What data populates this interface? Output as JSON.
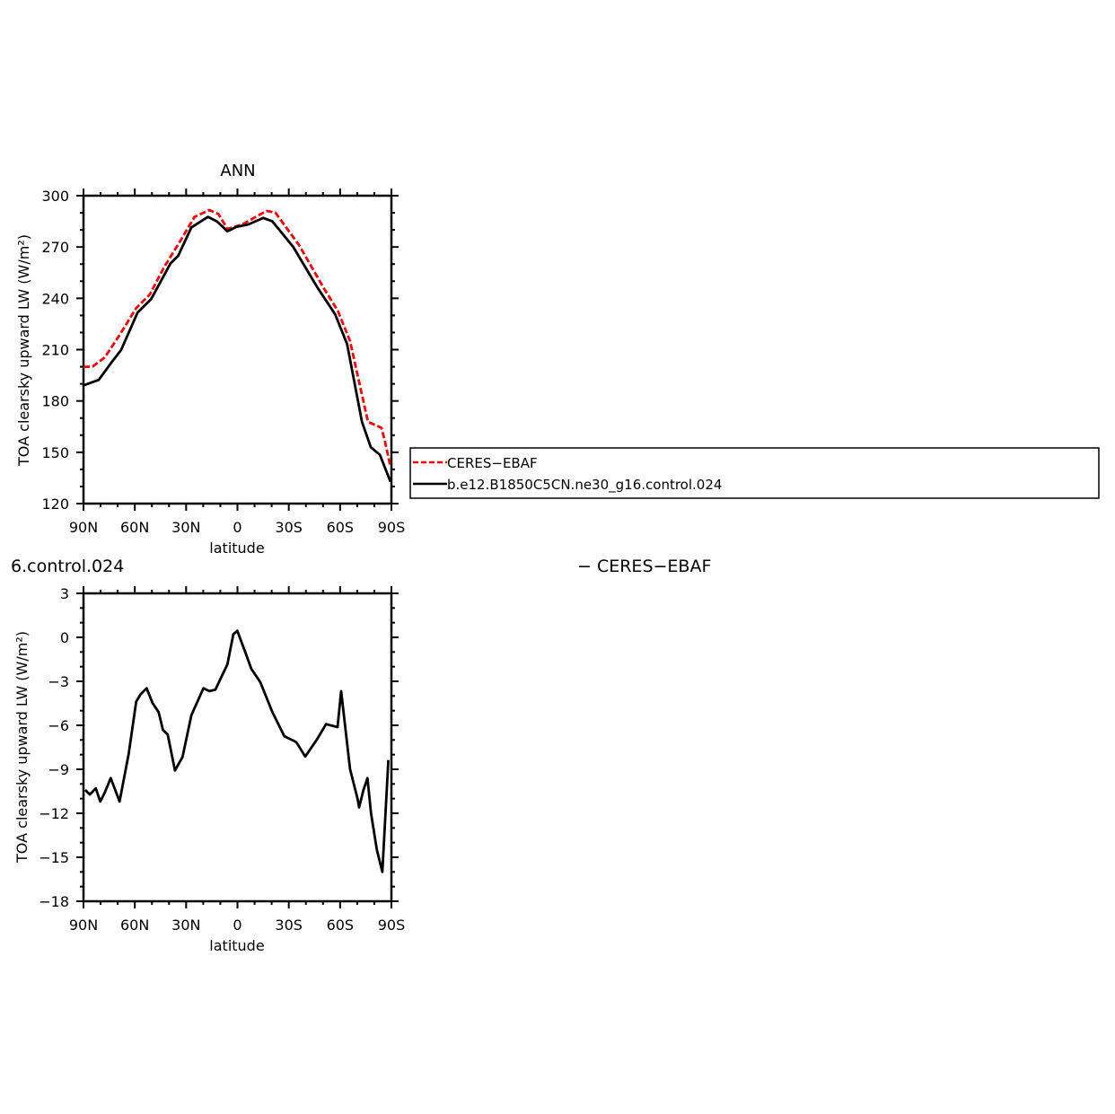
{
  "colors": {
    "obs": "#ff0000",
    "model": "#000000"
  },
  "legend": {
    "entries": [
      {
        "label": "CERES−EBAF",
        "color": "#ff0000",
        "style": "dashed"
      },
      {
        "label": "b.e12.B1850C5CN.ne30_g16.control.024",
        "color": "#000000",
        "style": "solid"
      }
    ]
  },
  "fragments": {
    "left_label": "6.control.024",
    "right_label": "− CERES−EBAF"
  },
  "chart_data": [
    {
      "type": "line",
      "title": "ANN",
      "xlabel": "latitude",
      "ylabel": "TOA clearsky upward LW (W/m²)",
      "xlim": [
        90,
        -90
      ],
      "ylim": [
        120,
        300
      ],
      "xticks": [
        {
          "v": 90,
          "label": "90N"
        },
        {
          "v": 60,
          "label": "60N"
        },
        {
          "v": 30,
          "label": "30N"
        },
        {
          "v": 0,
          "label": "0"
        },
        {
          "v": -30,
          "label": "30S"
        },
        {
          "v": -60,
          "label": "60S"
        },
        {
          "v": -90,
          "label": "90S"
        }
      ],
      "yticks": [
        120,
        150,
        180,
        210,
        240,
        270,
        300
      ],
      "legend_placement": "right",
      "series": [
        {
          "name": "CERES−EBAF",
          "color": "#ff0000",
          "dash": true,
          "x": [
            90,
            84.6,
            77.6,
            68.9,
            59.2,
            51.3,
            42.6,
            33.9,
            25.1,
            16.4,
            11.1,
            5.9,
            -2.9,
            -16.9,
            -22.1,
            -36.1,
            -50.1,
            -58.8,
            -65.8,
            -76.3,
            -84.2,
            -86,
            -89.4
          ],
          "y": [
            199.8,
            200.2,
            205.4,
            218.5,
            234.3,
            242.1,
            258.7,
            272.7,
            287.6,
            291.6,
            289.3,
            280.6,
            283.2,
            291.1,
            290.2,
            271,
            246.5,
            232.5,
            215,
            167.8,
            164.3,
            157.3,
            141.6
          ]
        },
        {
          "name": "b.e12.B1850C5CN.ne30_g16.control.024",
          "color": "#000000",
          "dash": false,
          "x": [
            90,
            81.1,
            74.1,
            68,
            58.4,
            50.5,
            39.1,
            34.7,
            26.9,
            17.2,
            12,
            5.9,
            0.6,
            -6.4,
            -15.1,
            -20.4,
            -32.6,
            -46.6,
            -57.1,
            -64.1,
            -72.8,
            -78,
            -83.3,
            -89.4
          ],
          "y": [
            189.1,
            192.3,
            201.9,
            209.8,
            231.6,
            239.5,
            260.5,
            264.8,
            281.5,
            287.6,
            285,
            279.2,
            281.8,
            283.2,
            287,
            285,
            270.1,
            246.5,
            230.7,
            213.3,
            167.8,
            152.9,
            148.5,
            132.8
          ]
        }
      ]
    },
    {
      "type": "line",
      "title": "",
      "xlabel": "latitude",
      "ylabel": "TOA clearsky upward LW (W/m²)",
      "xlim": [
        90,
        -90
      ],
      "ylim": [
        -18,
        3
      ],
      "xticks": [
        {
          "v": 90,
          "label": "90N"
        },
        {
          "v": 60,
          "label": "60N"
        },
        {
          "v": 30,
          "label": "30N"
        },
        {
          "v": 0,
          "label": "0"
        },
        {
          "v": -30,
          "label": "30S"
        },
        {
          "v": -60,
          "label": "60S"
        },
        {
          "v": -90,
          "label": "90S"
        }
      ],
      "yticks": [
        -18,
        -15,
        -12,
        -9,
        -6,
        -3,
        0,
        3
      ],
      "series": [
        {
          "color": "#000000",
          "dash": false,
          "x": [
            89,
            86.3,
            82.8,
            80.2,
            77.6,
            74.1,
            68.9,
            63.6,
            59.2,
            56.6,
            53.1,
            49.6,
            46.1,
            43.5,
            40.8,
            36.5,
            32.1,
            26.9,
            19.9,
            16.4,
            12.9,
            5.9,
            2.4,
            0.1,
            -4.6,
            -8.1,
            -13.4,
            -20.4,
            -27.4,
            -34.4,
            -39.6,
            -46.6,
            -51.8,
            -58.5,
            -60.6,
            -65.8,
            -70.2,
            -71.1,
            -73.7,
            -76,
            -78.1,
            -81.5,
            -84.7,
            -88.2
          ],
          "y": [
            -10.41,
            -10.72,
            -10.3,
            -11.2,
            -10.6,
            -9.6,
            -11.2,
            -7.96,
            -4.39,
            -3.88,
            -3.47,
            -4.49,
            -5.1,
            -6.33,
            -6.63,
            -9.08,
            -8.16,
            -5.31,
            -3.47,
            -3.67,
            -3.57,
            -1.84,
            0.2,
            0.45,
            -1.02,
            -2.14,
            -3.06,
            -5.1,
            -6.74,
            -7.15,
            -8.13,
            -6.94,
            -5.92,
            -6.12,
            -3.67,
            -8.98,
            -11.02,
            -11.6,
            -10.4,
            -9.6,
            -12.0,
            -14.5,
            -16.0,
            -8.37
          ]
        }
      ]
    }
  ]
}
